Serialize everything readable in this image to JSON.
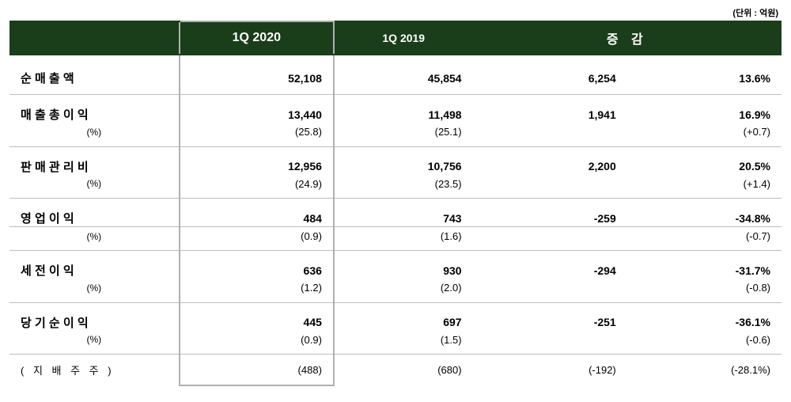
{
  "unit_note": "(단위 : 억원)",
  "colors": {
    "header_bg": "#1a3d1a",
    "header_fg": "#ffffff",
    "row_border": "#bdbdbd",
    "highlight_border": "#b0b0b0",
    "background": "#ffffff",
    "text": "#000000"
  },
  "columns": {
    "label": "",
    "q2020": "1Q  2020",
    "q2019": "1Q  2019",
    "change": "증 감"
  },
  "rows": {
    "net_sales": {
      "label": "순 매 출 액",
      "q2020": "52,108",
      "q2019": "45,854",
      "change": "6,254",
      "pct": "13.6%"
    },
    "gross_profit": {
      "label": "매 출 총 이 익",
      "q2020": "13,440",
      "q2019": "11,498",
      "change": "1,941",
      "pct": "16.9%",
      "sub_label": "(%)",
      "sub_2020": "(25.8)",
      "sub_2019": "(25.1)",
      "sub_pct": "(+0.7)"
    },
    "sga": {
      "label": "판 매 관 리 비",
      "q2020": "12,956",
      "q2019": "10,756",
      "change": "2,200",
      "pct": "20.5%",
      "sub_label": "(%)",
      "sub_2020": "(24.9)",
      "sub_2019": "(23.5)",
      "sub_pct": "(+1.4)"
    },
    "op_income": {
      "label": "영 업 이 익",
      "q2020": "484",
      "q2019": "743",
      "change": "-259",
      "pct": "-34.8%",
      "sub_label": "(%)",
      "sub_2020": "(0.9)",
      "sub_2019": "(1.6)",
      "sub_pct": "(-0.7)"
    },
    "pretax": {
      "label": "세 전 이 익",
      "q2020": "636",
      "q2019": "930",
      "change": "-294",
      "pct": "-31.7%",
      "sub_label": "(%)",
      "sub_2020": "(1.2)",
      "sub_2019": "(2.0)",
      "sub_pct": "(-0.8)"
    },
    "net_income": {
      "label": "당 기 순 이 익",
      "q2020": "445",
      "q2019": "697",
      "change": "-251",
      "pct": "-36.1%",
      "sub_label": "(%)",
      "sub_2020": "(0.9)",
      "sub_2019": "(1.5)",
      "sub_pct": "(-0.6)"
    },
    "controlling": {
      "label": "( 지 배 주 주 )",
      "q2020": "(488)",
      "q2019": "(680)",
      "change": "(-192)",
      "pct": "(-28.1%)"
    }
  }
}
